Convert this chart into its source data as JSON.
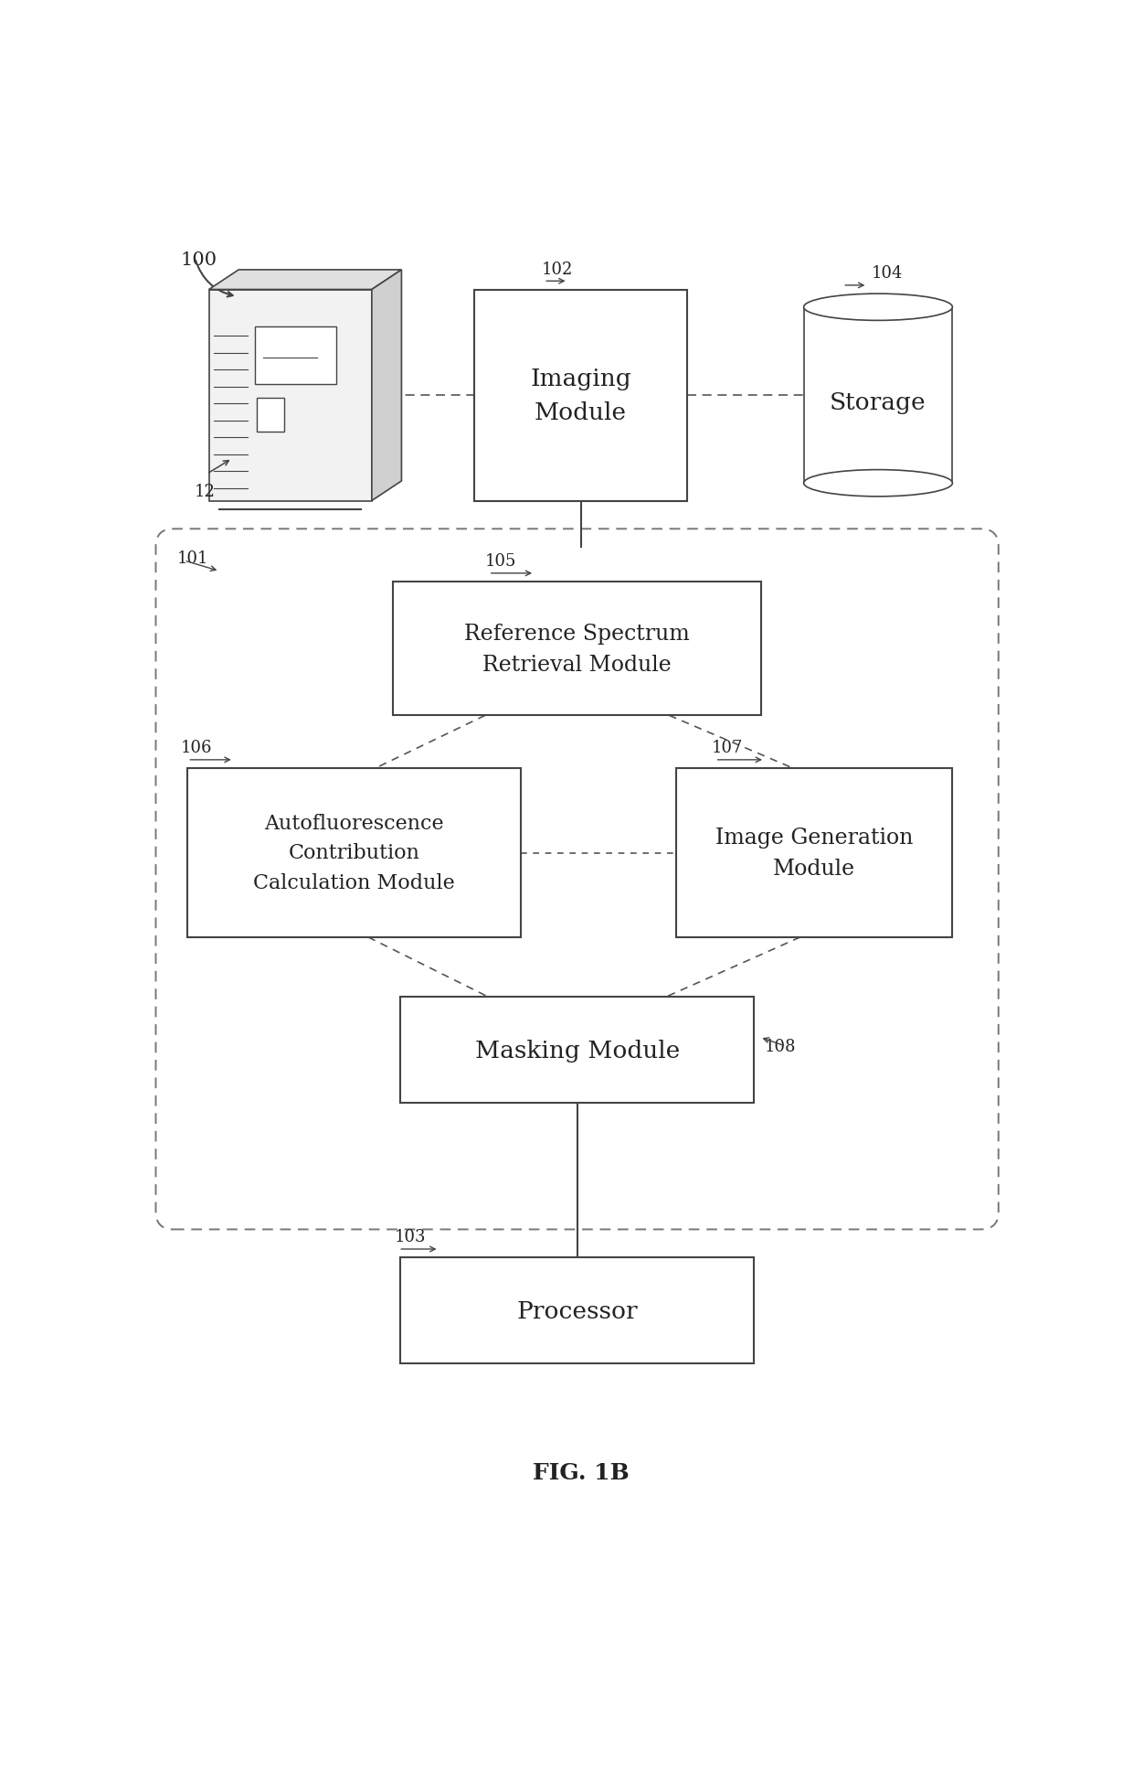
{
  "fig_width": 12.4,
  "fig_height": 19.4,
  "bg_color": "#ffffff",
  "title": "FIG. 1B",
  "label_100": "100",
  "label_12": "12",
  "label_101": "101",
  "label_102": "102",
  "label_103": "103",
  "label_104": "104",
  "label_105": "105",
  "label_106": "106",
  "label_107": "107",
  "label_108": "108",
  "box_102_text": "Imaging\nModule",
  "box_104_text": "Storage",
  "box_105_text": "Reference Spectrum\nRetrieval Module",
  "box_106_text": "Autofluorescence\nContribution\nCalculation Module",
  "box_107_text": "Image Generation\nModule",
  "box_108_text": "Masking Module",
  "box_103_text": "Processor",
  "line_color": "#444444",
  "box_edge_color": "#444444",
  "text_color": "#222222",
  "font_size_boxes": 16,
  "font_size_labels": 12,
  "font_size_title": 18
}
